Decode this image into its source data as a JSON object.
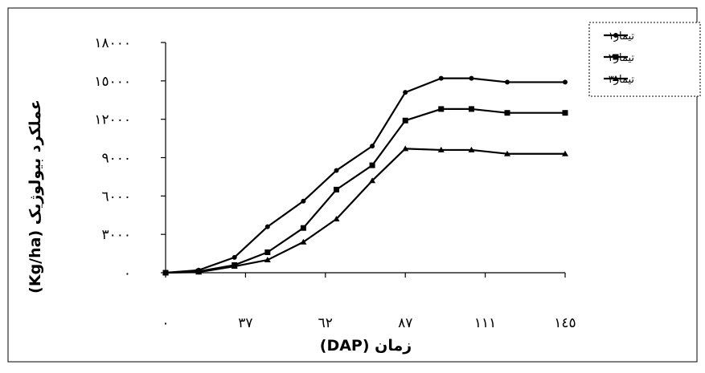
{
  "chart_data": {
    "type": "line",
    "x": [
      0,
      12,
      25,
      37,
      50,
      62,
      75,
      87,
      100,
      111,
      124,
      145
    ],
    "x_tick_labels": [
      "٠",
      "٣٧",
      "٦٢",
      "٨٧",
      "١١١",
      "١٤٥"
    ],
    "y_tick_labels": [
      "٠",
      "٣٠٠٠",
      "٦٠٠٠",
      "٩٠٠٠",
      "١٢٠٠٠",
      "١٥٠٠٠",
      "١٨٠٠٠"
    ],
    "xlabel": "زمان (DAP)",
    "ylabel": "عملکرد بیولوژیک (Kg/ha)",
    "ylim": [
      0,
      18000
    ],
    "grid": false,
    "legend_position": "top-right",
    "series": [
      {
        "name": "تیمار١",
        "marker": "circle",
        "values": [
          0,
          200,
          1200,
          3600,
          5600,
          8000,
          9900,
          14100,
          15200,
          15200,
          14900,
          14900
        ]
      },
      {
        "name": "تیمار٢",
        "marker": "square",
        "values": [
          0,
          100,
          600,
          1600,
          3500,
          6500,
          8400,
          11900,
          12800,
          12800,
          12500,
          12500
        ]
      },
      {
        "name": "تیمار٣",
        "marker": "triangle",
        "values": [
          0,
          50,
          500,
          1000,
          2400,
          4200,
          7200,
          9700,
          9600,
          9600,
          9300,
          9300
        ]
      }
    ]
  }
}
